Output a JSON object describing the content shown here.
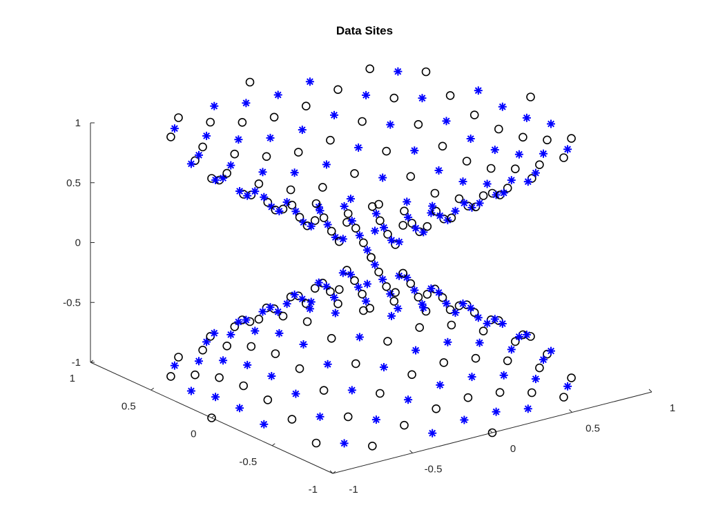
{
  "chart_data": {
    "type": "scatter",
    "title": "Data Sites",
    "projection": "3d-perspective",
    "grid": false,
    "box": false,
    "xlim": [
      -1,
      1
    ],
    "ylim": [
      -1,
      1
    ],
    "zlim": [
      -1,
      1
    ],
    "x_ticks": [
      "-1",
      "-0.5",
      "0",
      "0.5",
      "1"
    ],
    "y_ticks": [
      "-1",
      "-0.5",
      "0",
      "0.5",
      "1"
    ],
    "z_ticks": [
      "-1",
      "-0.5",
      "0",
      "0.5",
      "1"
    ],
    "series": [
      {
        "marker": "circle",
        "color": "#000000",
        "grid_n": 11,
        "step": 0.2,
        "offset": 0.0
      },
      {
        "marker": "asterisk",
        "color": "#0000ff",
        "grid_n": 11,
        "step": 0.2,
        "offset": 0.1
      }
    ],
    "surface": "z^2 = x^2 + y^2 (double cone), points on a regular grid in the unit square"
  }
}
